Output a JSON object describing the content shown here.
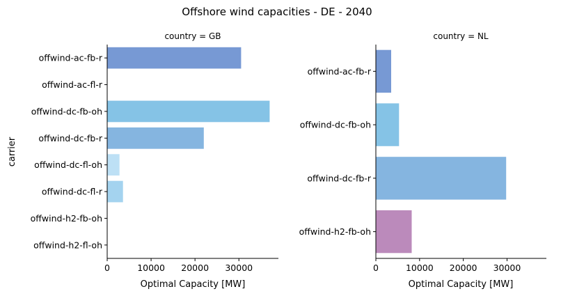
{
  "chart_data": {
    "type": "bar",
    "orientation": "horizontal",
    "title": "Offshore wind capacities - DE - 2040",
    "ylabel": "carrier",
    "panels": [
      {
        "title": "country = GB",
        "xlabel": "Optimal Capacity [MW]",
        "xlim": [
          0,
          39000
        ],
        "xticks": [
          0,
          10000,
          20000,
          30000
        ],
        "xtick_labels": [
          "0",
          "10000",
          "20000",
          "30000"
        ],
        "categories": [
          "offwind-ac-fb-r",
          "offwind-ac-fl-r",
          "offwind-dc-fb-oh",
          "offwind-dc-fb-r",
          "offwind-dc-fl-oh",
          "offwind-dc-fl-r",
          "offwind-h2-fb-oh",
          "offwind-h2-fl-oh"
        ],
        "values": [
          30500,
          0,
          37000,
          22000,
          2800,
          3600,
          0,
          0
        ],
        "colors": [
          "#7799d4",
          "#7799d4",
          "#85c3e6",
          "#85b5e0",
          "#bde0f5",
          "#a4d3ef",
          "#bb8abb",
          "#bb8abb"
        ]
      },
      {
        "title": "country = NL",
        "xlabel": "Optimal Capacity [MW]",
        "xlim": [
          0,
          39000
        ],
        "xticks": [
          0,
          10000,
          20000,
          30000
        ],
        "xtick_labels": [
          "0",
          "10000",
          "20000",
          "30000"
        ],
        "categories": [
          "offwind-ac-fb-r",
          "offwind-dc-fb-oh",
          "offwind-dc-fb-r",
          "offwind-h2-fb-oh"
        ],
        "values": [
          3500,
          5300,
          29800,
          8200
        ],
        "colors": [
          "#7799d4",
          "#85c3e6",
          "#85b5e0",
          "#bb8abb"
        ]
      }
    ]
  }
}
